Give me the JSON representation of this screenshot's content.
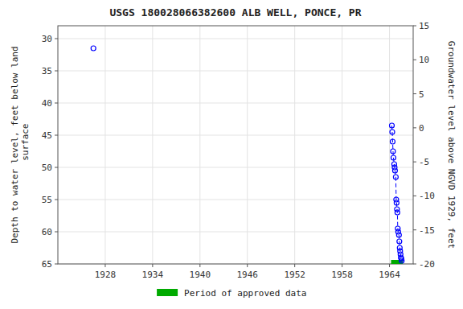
{
  "chart_data": {
    "type": "line",
    "title": "USGS 180028066382600 ALB WELL, PONCE, PR",
    "y_label": "Depth to water level, feet below land\n surface",
    "y2_label": "Groundwater level above NGVD 1929, feet",
    "xlim": [
      1922,
      1967
    ],
    "xticks": [
      1928,
      1934,
      1940,
      1946,
      1952,
      1958,
      1964
    ],
    "ylim": [
      65,
      28
    ],
    "yticks": [
      30,
      35,
      40,
      45,
      50,
      55,
      60,
      65
    ],
    "y2lim": [
      -20,
      15
    ],
    "y2ticks": [
      -20,
      -15,
      -10,
      -5,
      0,
      5,
      10,
      15
    ],
    "grid": true,
    "legend": "bottom",
    "series": [
      {
        "type": "scatter",
        "color": "blue",
        "marker": "circle",
        "line_style": "none",
        "x": [
          1926.5
        ],
        "values": [
          31.5
        ]
      },
      {
        "type": "line",
        "color": "blue",
        "marker": "circle",
        "line_style": "dashed",
        "x": [
          1964.3,
          1964.35,
          1964.4,
          1964.45,
          1964.5,
          1964.6,
          1964.65,
          1964.7,
          1964.8,
          1964.85,
          1964.9,
          1964.95,
          1965.0,
          1965.05,
          1965.1,
          1965.2,
          1965.25,
          1965.3,
          1965.35,
          1965.4,
          1965.45,
          1965.5,
          1965.55
        ],
        "values": [
          43.5,
          44.5,
          46.0,
          47.5,
          48.5,
          49.5,
          50.0,
          50.5,
          51.5,
          55.0,
          55.5,
          56.5,
          57.0,
          59.5,
          60.0,
          60.5,
          61.5,
          62.5,
          63.0,
          63.5,
          64.0,
          64.2,
          64.5
        ]
      }
    ],
    "approved_period": {
      "name": "Period of approved data",
      "start": 1964.2,
      "end": 1965.7,
      "color": "#00aa00"
    }
  }
}
